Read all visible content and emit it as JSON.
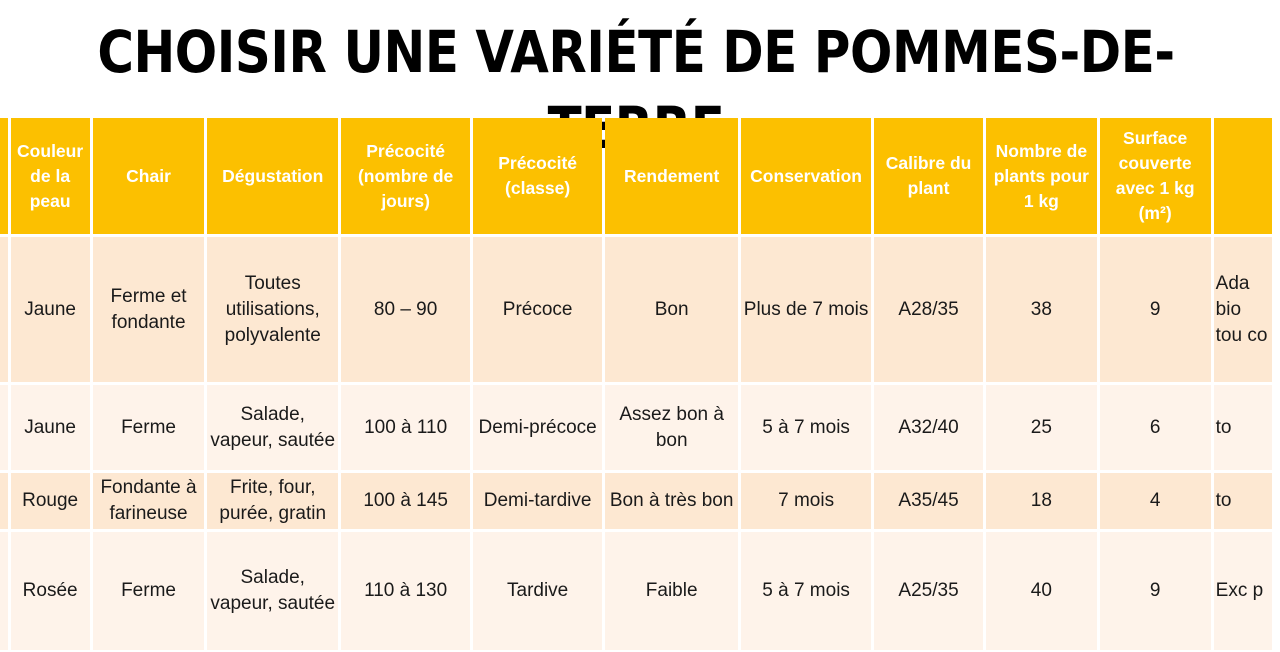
{
  "title": "CHOISIR UNE VARIÉTÉ DE POMMES-DE-TERRE",
  "headers": {
    "couleur": "Couleur de la peau",
    "chair": "Chair",
    "degustation": "Dégustation",
    "precocite_jours": "Précocité (nombre de jours)",
    "precocite_classe": "Précocité (classe)",
    "rendement": "Rendement",
    "conservation": "Conservation",
    "calibre": "Calibre du plant",
    "nombre": "Nombre de plants pour 1 kg",
    "surface": "Surface couverte avec 1 kg (m²)",
    "extra": ""
  },
  "rows": [
    {
      "couleur": "Jaune",
      "chair": "Ferme et fondante",
      "degustation": "Toutes utilisations, polyvalente",
      "precocite_jours": "80 – 90",
      "precocite_classe": "Précoce",
      "rendement": "Bon",
      "conservation": "Plus de 7 mois",
      "calibre": "A28/35",
      "nombre": "38",
      "surface": "9",
      "extra": "Ada bio tou co"
    },
    {
      "couleur": "Jaune",
      "chair": "Ferme",
      "degustation": "Salade, vapeur, sautée",
      "precocite_jours": "100 à 110",
      "precocite_classe": "Demi-précoce",
      "rendement": "Assez bon à bon",
      "conservation": "5 à 7 mois",
      "calibre": "A32/40",
      "nombre": "25",
      "surface": "6",
      "extra": "to"
    },
    {
      "couleur": "Rouge",
      "chair": "Fondante à farineuse",
      "degustation": "Frite, four, purée, gratin",
      "precocite_jours": "100 à 145",
      "precocite_classe": "Demi-tardive",
      "rendement": "Bon à très bon",
      "conservation": "7 mois",
      "calibre": "A35/45",
      "nombre": "18",
      "surface": "4",
      "extra": "to"
    },
    {
      "couleur": "Rosée",
      "chair": "Ferme",
      "degustation": "Salade, vapeur, sautée",
      "precocite_jours": "110 à 130",
      "precocite_classe": "Tardive",
      "rendement": "Faible",
      "conservation": "5 à 7 mois",
      "calibre": "A25/35",
      "nombre": "40",
      "surface": "9",
      "extra": "Exc p"
    }
  ],
  "colors": {
    "header_bg": "#fcc000",
    "row_dark": "#fde8d2",
    "row_light": "#fef3ea"
  }
}
